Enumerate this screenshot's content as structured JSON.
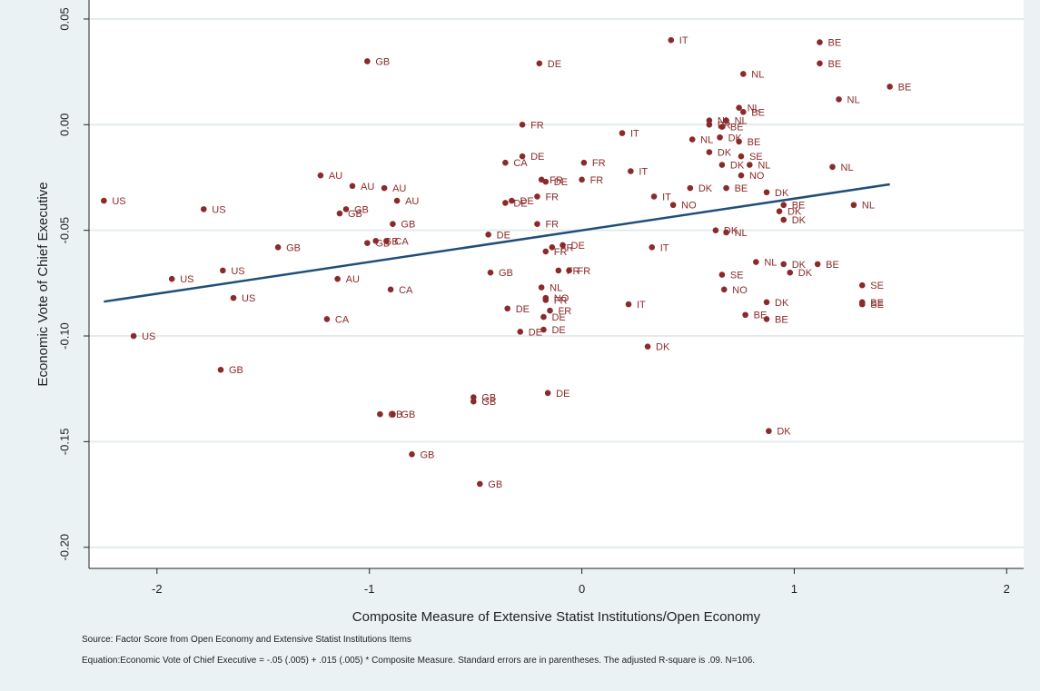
{
  "chart_data": {
    "type": "scatter",
    "title": "",
    "xlabel": "Composite Measure of Extensive Statist Institutions/Open Economy",
    "ylabel": "Economic Vote of Chief Executive",
    "xlim": [
      -2.32,
      2.08
    ],
    "ylim": [
      -0.21,
      0.059
    ],
    "xticks": [
      -2,
      -1,
      0,
      1,
      2
    ],
    "yticks": [
      0.05,
      0.0,
      -0.05,
      -0.1,
      -0.15,
      -0.2
    ],
    "ytick_labels": [
      "0.05",
      "0.00",
      "-0.05",
      "-0.10",
      "-0.15",
      "-0.20"
    ],
    "grid": true,
    "fit_line": {
      "intercept": -0.05,
      "slope": 0.015,
      "x_range": [
        -2.25,
        1.45
      ]
    },
    "points": [
      {
        "x": 0.42,
        "y": 0.04,
        "label": "IT"
      },
      {
        "x": 1.12,
        "y": 0.039,
        "label": "BE"
      },
      {
        "x": -1.01,
        "y": 0.03,
        "label": "GB"
      },
      {
        "x": -0.2,
        "y": 0.029,
        "label": "DE"
      },
      {
        "x": 1.12,
        "y": 0.029,
        "label": "BE"
      },
      {
        "x": 0.76,
        "y": 0.024,
        "label": "NL"
      },
      {
        "x": 1.45,
        "y": 0.018,
        "label": "BE"
      },
      {
        "x": 1.21,
        "y": 0.012,
        "label": "NL"
      },
      {
        "x": 0.74,
        "y": 0.008,
        "label": "NL"
      },
      {
        "x": 0.76,
        "y": 0.006,
        "label": "BE"
      },
      {
        "x": 0.6,
        "y": 0.002,
        "label": "NL"
      },
      {
        "x": 0.68,
        "y": 0.002,
        "label": "NL"
      },
      {
        "x": -0.28,
        "y": 0.0,
        "label": "FR"
      },
      {
        "x": 0.6,
        "y": 0.0,
        "label": "FR"
      },
      {
        "x": 0.66,
        "y": -0.001,
        "label": "BE"
      },
      {
        "x": 0.19,
        "y": -0.004,
        "label": "IT"
      },
      {
        "x": 0.52,
        "y": -0.007,
        "label": "NL"
      },
      {
        "x": 0.65,
        "y": -0.006,
        "label": "DK"
      },
      {
        "x": 0.74,
        "y": -0.008,
        "label": "BE"
      },
      {
        "x": 0.6,
        "y": -0.013,
        "label": "DK"
      },
      {
        "x": 0.75,
        "y": -0.015,
        "label": "SE"
      },
      {
        "x": -0.28,
        "y": -0.015,
        "label": "DE"
      },
      {
        "x": -0.36,
        "y": -0.018,
        "label": "CA"
      },
      {
        "x": 0.01,
        "y": -0.018,
        "label": "FR"
      },
      {
        "x": 0.66,
        "y": -0.019,
        "label": "DK"
      },
      {
        "x": 0.79,
        "y": -0.019,
        "label": "NL"
      },
      {
        "x": 1.18,
        "y": -0.02,
        "label": "NL"
      },
      {
        "x": 0.23,
        "y": -0.022,
        "label": "IT"
      },
      {
        "x": 0.75,
        "y": -0.024,
        "label": "NO"
      },
      {
        "x": -1.23,
        "y": -0.024,
        "label": "AU"
      },
      {
        "x": -0.19,
        "y": -0.026,
        "label": "FR"
      },
      {
        "x": -0.17,
        "y": -0.027,
        "label": "DE"
      },
      {
        "x": 0.0,
        "y": -0.026,
        "label": "FR"
      },
      {
        "x": -1.08,
        "y": -0.029,
        "label": "AU"
      },
      {
        "x": -0.93,
        "y": -0.03,
        "label": "AU"
      },
      {
        "x": 0.51,
        "y": -0.03,
        "label": "DK"
      },
      {
        "x": 0.68,
        "y": -0.03,
        "label": "BE"
      },
      {
        "x": 0.87,
        "y": -0.032,
        "label": "DK"
      },
      {
        "x": 0.34,
        "y": -0.034,
        "label": "IT"
      },
      {
        "x": -0.21,
        "y": -0.034,
        "label": "FR"
      },
      {
        "x": -2.25,
        "y": -0.036,
        "label": "US"
      },
      {
        "x": -0.87,
        "y": -0.036,
        "label": "AU"
      },
      {
        "x": -0.33,
        "y": -0.036,
        "label": "DE"
      },
      {
        "x": -0.36,
        "y": -0.037,
        "label": "DE"
      },
      {
        "x": 0.43,
        "y": -0.038,
        "label": "NO"
      },
      {
        "x": 0.95,
        "y": -0.038,
        "label": "BE"
      },
      {
        "x": 1.28,
        "y": -0.038,
        "label": "NL"
      },
      {
        "x": -1.78,
        "y": -0.04,
        "label": "US"
      },
      {
        "x": -1.11,
        "y": -0.04,
        "label": "GB"
      },
      {
        "x": 0.93,
        "y": -0.041,
        "label": "DK"
      },
      {
        "x": -1.14,
        "y": -0.042,
        "label": "GB"
      },
      {
        "x": 0.95,
        "y": -0.045,
        "label": "DK"
      },
      {
        "x": -0.89,
        "y": -0.047,
        "label": "GB"
      },
      {
        "x": -0.21,
        "y": -0.047,
        "label": "FR"
      },
      {
        "x": 0.63,
        "y": -0.05,
        "label": "DK"
      },
      {
        "x": 0.68,
        "y": -0.051,
        "label": "NL"
      },
      {
        "x": -0.44,
        "y": -0.052,
        "label": "DE"
      },
      {
        "x": -0.97,
        "y": -0.055,
        "label": "GB"
      },
      {
        "x": -0.92,
        "y": -0.055,
        "label": "CA"
      },
      {
        "x": -1.01,
        "y": -0.056,
        "label": "GB"
      },
      {
        "x": -1.43,
        "y": -0.058,
        "label": "GB"
      },
      {
        "x": -0.09,
        "y": -0.057,
        "label": "DE"
      },
      {
        "x": -0.14,
        "y": -0.058,
        "label": "FR"
      },
      {
        "x": 0.33,
        "y": -0.058,
        "label": "IT"
      },
      {
        "x": -0.17,
        "y": -0.06,
        "label": "FR"
      },
      {
        "x": 0.82,
        "y": -0.065,
        "label": "NL"
      },
      {
        "x": 0.95,
        "y": -0.066,
        "label": "DK"
      },
      {
        "x": 1.11,
        "y": -0.066,
        "label": "BE"
      },
      {
        "x": -1.69,
        "y": -0.069,
        "label": "US"
      },
      {
        "x": -0.11,
        "y": -0.069,
        "label": "FR"
      },
      {
        "x": -0.06,
        "y": -0.069,
        "label": "FR"
      },
      {
        "x": -0.43,
        "y": -0.07,
        "label": "GB"
      },
      {
        "x": 0.98,
        "y": -0.07,
        "label": "DK"
      },
      {
        "x": 0.66,
        "y": -0.071,
        "label": "SE"
      },
      {
        "x": -1.93,
        "y": -0.073,
        "label": "US"
      },
      {
        "x": -1.15,
        "y": -0.073,
        "label": "AU"
      },
      {
        "x": 1.32,
        "y": -0.076,
        "label": "SE"
      },
      {
        "x": -0.19,
        "y": -0.077,
        "label": "NL"
      },
      {
        "x": -0.9,
        "y": -0.078,
        "label": "CA"
      },
      {
        "x": 0.67,
        "y": -0.078,
        "label": "NO"
      },
      {
        "x": -1.64,
        "y": -0.082,
        "label": "US"
      },
      {
        "x": -0.17,
        "y": -0.082,
        "label": "NO"
      },
      {
        "x": -0.17,
        "y": -0.083,
        "label": "FR"
      },
      {
        "x": 0.87,
        "y": -0.084,
        "label": "DK"
      },
      {
        "x": 1.32,
        "y": -0.084,
        "label": "BE"
      },
      {
        "x": 0.22,
        "y": -0.085,
        "label": "IT"
      },
      {
        "x": 1.32,
        "y": -0.085,
        "label": "SE"
      },
      {
        "x": -0.35,
        "y": -0.087,
        "label": "DE"
      },
      {
        "x": -0.15,
        "y": -0.088,
        "label": "FR"
      },
      {
        "x": -0.18,
        "y": -0.091,
        "label": "DE"
      },
      {
        "x": 0.77,
        "y": -0.09,
        "label": "BE"
      },
      {
        "x": 0.87,
        "y": -0.092,
        "label": "BE"
      },
      {
        "x": -1.2,
        "y": -0.092,
        "label": "CA"
      },
      {
        "x": -0.18,
        "y": -0.097,
        "label": "DE"
      },
      {
        "x": -0.29,
        "y": -0.098,
        "label": "DE"
      },
      {
        "x": -2.11,
        "y": -0.1,
        "label": "US"
      },
      {
        "x": 0.31,
        "y": -0.105,
        "label": "DK"
      },
      {
        "x": -1.7,
        "y": -0.116,
        "label": "GB"
      },
      {
        "x": -0.16,
        "y": -0.127,
        "label": "DE"
      },
      {
        "x": -0.51,
        "y": -0.129,
        "label": "GB"
      },
      {
        "x": -0.51,
        "y": -0.131,
        "label": "GB"
      },
      {
        "x": -0.95,
        "y": -0.137,
        "label": "GB"
      },
      {
        "x": -0.89,
        "y": -0.137,
        "label": "GB"
      },
      {
        "x": 0.88,
        "y": -0.145,
        "label": "DK"
      },
      {
        "x": -0.8,
        "y": -0.156,
        "label": "GB"
      },
      {
        "x": -0.48,
        "y": -0.17,
        "label": "GB"
      }
    ],
    "colors": {
      "point": "#8b2a2a",
      "fit": "#1f4e79",
      "plot_bg": "#ffffff",
      "grid": "#e3ecee",
      "outer_bg": "#eaf2f3"
    }
  },
  "notes": {
    "source": "Source: Factor Score from Open Economy and Extensive Statist Institutions Items",
    "equation": "Equation:Economic Vote of Chief Executive = -.05 (.005) + .015 (.005) * Composite Measure. Standard errors are in parentheses. The adjusted R-square is .09. N=106."
  }
}
